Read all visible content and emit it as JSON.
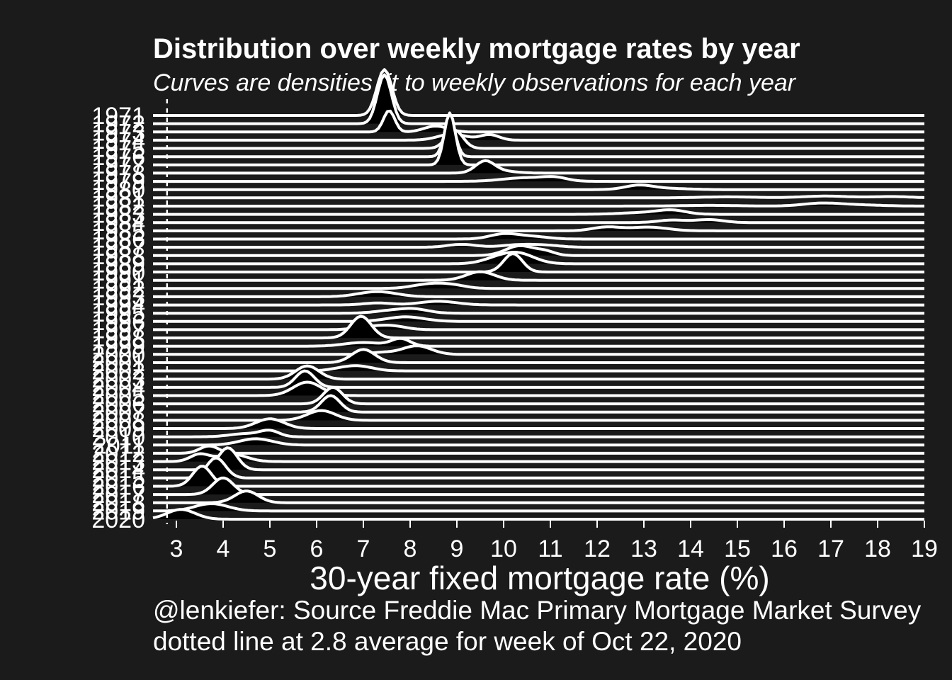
{
  "chart_data": {
    "type": "ridgeline",
    "title": "Distribution over weekly mortgage rates by year",
    "subtitle": "Curves are densities fit to weekly observations for each year",
    "xlabel": "30-year fixed mortgage rate (%)",
    "ylabel": "",
    "caption_lines": [
      "@lenkiefer: Source Freddie Mac Primary Mortgage Market Survey",
      "dotted line at 2.8 average for week of Oct 22, 2020"
    ],
    "xlim": [
      2.5,
      19
    ],
    "x_ticks": [
      3,
      4,
      5,
      6,
      7,
      8,
      9,
      10,
      11,
      12,
      13,
      14,
      15,
      16,
      17,
      18,
      19
    ],
    "reference_line": {
      "x": 2.8,
      "style": "dotted"
    },
    "grid": false,
    "legend": "none",
    "colors": {
      "background": "#1b1b1b",
      "line": "#ffffff",
      "fill": "#000000",
      "text": "#ffffff"
    },
    "series": [
      {
        "year": "1971",
        "peaks": [
          {
            "mu": 7.45,
            "sd": 0.16,
            "w": 1.0
          }
        ]
      },
      {
        "year": "1972",
        "peaks": [
          {
            "mu": 7.45,
            "sd": 0.15,
            "w": 1.0
          }
        ]
      },
      {
        "year": "1973",
        "peaks": [
          {
            "mu": 7.55,
            "sd": 0.12,
            "w": 0.35
          },
          {
            "mu": 8.55,
            "sd": 0.25,
            "w": 0.2
          }
        ]
      },
      {
        "year": "1974",
        "peaks": [
          {
            "mu": 8.9,
            "sd": 0.3,
            "w": 0.25
          },
          {
            "mu": 9.7,
            "sd": 0.2,
            "w": 0.15
          }
        ]
      },
      {
        "year": "1975",
        "peaks": [
          {
            "mu": 8.95,
            "sd": 0.18,
            "w": 0.45
          }
        ]
      },
      {
        "year": "1976",
        "peaks": [
          {
            "mu": 8.85,
            "sd": 0.12,
            "w": 0.6
          }
        ]
      },
      {
        "year": "1977",
        "peaks": [
          {
            "mu": 8.85,
            "sd": 0.12,
            "w": 0.85
          }
        ]
      },
      {
        "year": "1978",
        "peaks": [
          {
            "mu": 9.6,
            "sd": 0.2,
            "w": 0.3
          },
          {
            "mu": 9.9,
            "sd": 0.35,
            "w": 0.1
          }
        ]
      },
      {
        "year": "1979",
        "peaks": [
          {
            "mu": 10.5,
            "sd": 0.5,
            "w": 0.25
          },
          {
            "mu": 11.1,
            "sd": 0.25,
            "w": 0.1
          }
        ]
      },
      {
        "year": "1980",
        "peaks": [
          {
            "mu": 12.9,
            "sd": 0.3,
            "w": 0.18
          },
          {
            "mu": 13.6,
            "sd": 0.4,
            "w": 0.06
          }
        ]
      },
      {
        "year": "1981",
        "peaks": [
          {
            "mu": 14.8,
            "sd": 0.6,
            "w": 0.08
          },
          {
            "mu": 16.9,
            "sd": 0.5,
            "w": 0.12
          },
          {
            "mu": 18.3,
            "sd": 0.4,
            "w": 0.07
          }
        ]
      },
      {
        "year": "1982",
        "peaks": [
          {
            "mu": 16.8,
            "sd": 0.4,
            "w": 0.15
          },
          {
            "mu": 17.6,
            "sd": 0.5,
            "w": 0.08
          },
          {
            "mu": 14.4,
            "sd": 0.6,
            "w": 0.06
          }
        ]
      },
      {
        "year": "1983",
        "peaks": [
          {
            "mu": 13.0,
            "sd": 0.5,
            "w": 0.12
          },
          {
            "mu": 13.6,
            "sd": 0.3,
            "w": 0.15
          }
        ]
      },
      {
        "year": "1984",
        "peaks": [
          {
            "mu": 13.6,
            "sd": 0.3,
            "w": 0.1
          },
          {
            "mu": 14.4,
            "sd": 0.3,
            "w": 0.12
          }
        ]
      },
      {
        "year": "1985",
        "peaks": [
          {
            "mu": 12.2,
            "sd": 0.3,
            "w": 0.15
          },
          {
            "mu": 13.1,
            "sd": 0.4,
            "w": 0.2
          }
        ]
      },
      {
        "year": "1986",
        "peaks": [
          {
            "mu": 10.0,
            "sd": 0.3,
            "w": 0.2
          },
          {
            "mu": 10.6,
            "sd": 0.35,
            "w": 0.12
          }
        ]
      },
      {
        "year": "1987",
        "peaks": [
          {
            "mu": 9.1,
            "sd": 0.3,
            "w": 0.12
          },
          {
            "mu": 10.4,
            "sd": 0.4,
            "w": 0.15
          },
          {
            "mu": 11.0,
            "sd": 0.3,
            "w": 0.05
          }
        ]
      },
      {
        "year": "1988",
        "peaks": [
          {
            "mu": 10.35,
            "sd": 0.3,
            "w": 0.4
          },
          {
            "mu": 10.9,
            "sd": 0.2,
            "w": 0.1
          }
        ]
      },
      {
        "year": "1989",
        "peaks": [
          {
            "mu": 10.3,
            "sd": 0.35,
            "w": 0.5
          },
          {
            "mu": 9.8,
            "sd": 0.3,
            "w": 0.15
          }
        ]
      },
      {
        "year": "1990",
        "peaks": [
          {
            "mu": 10.2,
            "sd": 0.2,
            "w": 0.5
          }
        ]
      },
      {
        "year": "1991",
        "peaks": [
          {
            "mu": 9.5,
            "sd": 0.3,
            "w": 0.35
          }
        ]
      },
      {
        "year": "1992",
        "peaks": [
          {
            "mu": 8.4,
            "sd": 0.35,
            "w": 0.2
          },
          {
            "mu": 8.9,
            "sd": 0.3,
            "w": 0.12
          }
        ]
      },
      {
        "year": "1993",
        "peaks": [
          {
            "mu": 7.3,
            "sd": 0.4,
            "w": 0.28
          }
        ]
      },
      {
        "year": "1994",
        "peaks": [
          {
            "mu": 7.3,
            "sd": 0.3,
            "w": 0.08
          },
          {
            "mu": 8.6,
            "sd": 0.4,
            "w": 0.2
          }
        ]
      },
      {
        "year": "1995",
        "peaks": [
          {
            "mu": 7.6,
            "sd": 0.35,
            "w": 0.12
          },
          {
            "mu": 8.1,
            "sd": 0.3,
            "w": 0.15
          }
        ]
      },
      {
        "year": "1996",
        "peaks": [
          {
            "mu": 7.9,
            "sd": 0.4,
            "w": 0.25
          }
        ]
      },
      {
        "year": "1997",
        "peaks": [
          {
            "mu": 7.6,
            "sd": 0.3,
            "w": 0.15
          },
          {
            "mu": 7.1,
            "sd": 0.3,
            "w": 0.1
          }
        ]
      },
      {
        "year": "1998",
        "peaks": [
          {
            "mu": 6.95,
            "sd": 0.22,
            "w": 0.65
          }
        ]
      },
      {
        "year": "1999",
        "peaks": [
          {
            "mu": 7.0,
            "sd": 0.4,
            "w": 0.2
          },
          {
            "mu": 7.8,
            "sd": 0.2,
            "w": 0.2
          }
        ]
      },
      {
        "year": "2000",
        "peaks": [
          {
            "mu": 8.15,
            "sd": 0.3,
            "w": 0.35
          },
          {
            "mu": 7.4,
            "sd": 0.3,
            "w": 0.08
          }
        ]
      },
      {
        "year": "2001",
        "peaks": [
          {
            "mu": 7.0,
            "sd": 0.25,
            "w": 0.45
          }
        ]
      },
      {
        "year": "2002",
        "peaks": [
          {
            "mu": 6.6,
            "sd": 0.3,
            "w": 0.1
          },
          {
            "mu": 6.95,
            "sd": 0.3,
            "w": 0.15
          }
        ]
      },
      {
        "year": "2003",
        "peaks": [
          {
            "mu": 5.8,
            "sd": 0.25,
            "w": 0.45
          }
        ]
      },
      {
        "year": "2004",
        "peaks": [
          {
            "mu": 5.75,
            "sd": 0.2,
            "w": 0.45
          }
        ]
      },
      {
        "year": "2005",
        "peaks": [
          {
            "mu": 5.8,
            "sd": 0.3,
            "w": 0.55
          }
        ]
      },
      {
        "year": "2006",
        "peaks": [
          {
            "mu": 6.35,
            "sd": 0.2,
            "w": 0.45
          }
        ]
      },
      {
        "year": "2007",
        "peaks": [
          {
            "mu": 6.3,
            "sd": 0.2,
            "w": 0.45
          }
        ]
      },
      {
        "year": "2008",
        "peaks": [
          {
            "mu": 6.1,
            "sd": 0.3,
            "w": 0.4
          }
        ]
      },
      {
        "year": "2009",
        "peaks": [
          {
            "mu": 5.0,
            "sd": 0.3,
            "w": 0.4
          }
        ]
      },
      {
        "year": "2010",
        "peaks": [
          {
            "mu": 4.5,
            "sd": 0.35,
            "w": 0.15
          },
          {
            "mu": 5.0,
            "sd": 0.2,
            "w": 0.15
          }
        ]
      },
      {
        "year": "2011",
        "peaks": [
          {
            "mu": 4.7,
            "sd": 0.35,
            "w": 0.3
          }
        ]
      },
      {
        "year": "2012",
        "peaks": [
          {
            "mu": 3.7,
            "sd": 0.2,
            "w": 0.2
          }
        ]
      },
      {
        "year": "2013",
        "peaks": [
          {
            "mu": 3.5,
            "sd": 0.2,
            "w": 0.2
          },
          {
            "mu": 4.2,
            "sd": 0.3,
            "w": 0.3
          }
        ]
      },
      {
        "year": "2014",
        "peaks": [
          {
            "mu": 4.1,
            "sd": 0.2,
            "w": 0.6
          }
        ]
      },
      {
        "year": "2015",
        "peaks": [
          {
            "mu": 3.85,
            "sd": 0.2,
            "w": 0.55
          }
        ]
      },
      {
        "year": "2016",
        "peaks": [
          {
            "mu": 3.55,
            "sd": 0.2,
            "w": 0.55
          }
        ]
      },
      {
        "year": "2017",
        "peaks": [
          {
            "mu": 4.0,
            "sd": 0.22,
            "w": 0.5
          }
        ]
      },
      {
        "year": "2018",
        "peaks": [
          {
            "mu": 4.5,
            "sd": 0.25,
            "w": 0.4
          }
        ]
      },
      {
        "year": "2019",
        "peaks": [
          {
            "mu": 3.75,
            "sd": 0.35,
            "w": 0.35
          }
        ]
      },
      {
        "year": "2020",
        "peaks": [
          {
            "mu": 3.1,
            "sd": 0.3,
            "w": 0.4
          }
        ]
      }
    ]
  }
}
